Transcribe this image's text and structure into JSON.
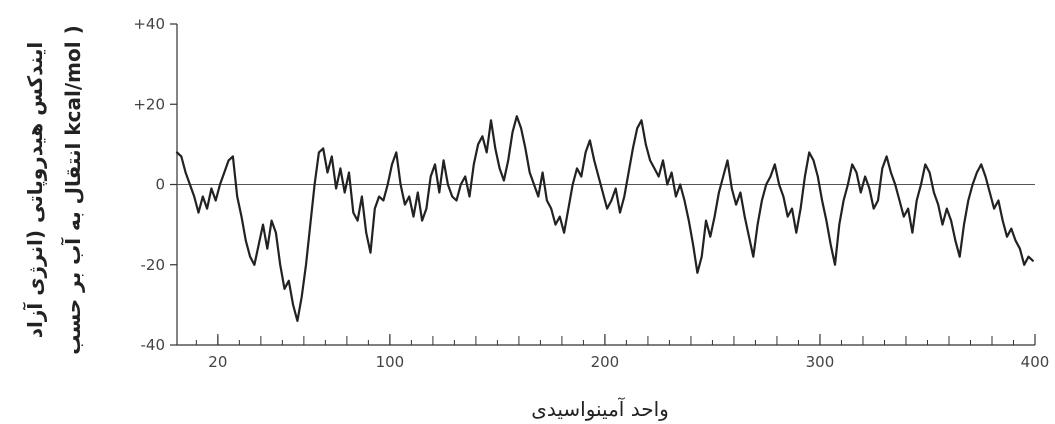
{
  "chart_data": {
    "type": "line",
    "title": "",
    "ylabel_line1": "ایندکس هیدروپاتی (انرژی آزاد",
    "ylabel_line2": "انتقال به آب بر حسب kcal/mol )",
    "xlabel": "واحد آمینواسیدی",
    "xlim": [
      1,
      400
    ],
    "ylim": [
      -40,
      40
    ],
    "x_ticks": [
      {
        "value": 20,
        "label": "20"
      },
      {
        "value": 100,
        "label": "100"
      },
      {
        "value": 200,
        "label": "200"
      },
      {
        "value": 300,
        "label": "300"
      },
      {
        "value": 400,
        "label": "400"
      }
    ],
    "y_ticks": [
      {
        "value": 40,
        "label": "+40"
      },
      {
        "value": 20,
        "label": "+20"
      },
      {
        "value": 0,
        "label": "0"
      },
      {
        "value": -20,
        "label": "-20"
      },
      {
        "value": -40,
        "label": "-40"
      }
    ],
    "zero_line": true,
    "series": [
      {
        "color": "#222222",
        "points": [
          [
            1,
            8
          ],
          [
            3,
            7
          ],
          [
            5,
            3
          ],
          [
            7,
            0
          ],
          [
            9,
            -3
          ],
          [
            11,
            -7
          ],
          [
            13,
            -3
          ],
          [
            15,
            -6
          ],
          [
            17,
            -1
          ],
          [
            19,
            -4
          ],
          [
            21,
            0
          ],
          [
            23,
            3
          ],
          [
            25,
            6
          ],
          [
            27,
            7
          ],
          [
            29,
            -3
          ],
          [
            31,
            -8
          ],
          [
            33,
            -14
          ],
          [
            35,
            -18
          ],
          [
            37,
            -20
          ],
          [
            39,
            -15
          ],
          [
            41,
            -10
          ],
          [
            43,
            -16
          ],
          [
            45,
            -9
          ],
          [
            47,
            -12
          ],
          [
            49,
            -20
          ],
          [
            51,
            -26
          ],
          [
            53,
            -24
          ],
          [
            55,
            -30
          ],
          [
            57,
            -34
          ],
          [
            59,
            -28
          ],
          [
            61,
            -20
          ],
          [
            63,
            -10
          ],
          [
            65,
            0
          ],
          [
            67,
            8
          ],
          [
            69,
            9
          ],
          [
            71,
            3
          ],
          [
            73,
            7
          ],
          [
            75,
            -1
          ],
          [
            77,
            4
          ],
          [
            79,
            -2
          ],
          [
            81,
            3
          ],
          [
            83,
            -7
          ],
          [
            85,
            -9
          ],
          [
            87,
            -3
          ],
          [
            89,
            -12
          ],
          [
            91,
            -17
          ],
          [
            93,
            -6
          ],
          [
            95,
            -3
          ],
          [
            97,
            -4
          ],
          [
            99,
            0
          ],
          [
            101,
            5
          ],
          [
            103,
            8
          ],
          [
            105,
            0
          ],
          [
            107,
            -5
          ],
          [
            109,
            -3
          ],
          [
            111,
            -8
          ],
          [
            113,
            -2
          ],
          [
            115,
            -9
          ],
          [
            117,
            -6
          ],
          [
            119,
            2
          ],
          [
            121,
            5
          ],
          [
            123,
            -2
          ],
          [
            125,
            6
          ],
          [
            127,
            0
          ],
          [
            129,
            -3
          ],
          [
            131,
            -4
          ],
          [
            133,
            0
          ],
          [
            135,
            2
          ],
          [
            137,
            -3
          ],
          [
            139,
            5
          ],
          [
            141,
            10
          ],
          [
            143,
            12
          ],
          [
            145,
            8
          ],
          [
            147,
            16
          ],
          [
            149,
            9
          ],
          [
            151,
            4
          ],
          [
            153,
            1
          ],
          [
            155,
            6
          ],
          [
            157,
            13
          ],
          [
            159,
            17
          ],
          [
            161,
            14
          ],
          [
            163,
            9
          ],
          [
            165,
            3
          ],
          [
            167,
            0
          ],
          [
            169,
            -3
          ],
          [
            171,
            3
          ],
          [
            173,
            -4
          ],
          [
            175,
            -6
          ],
          [
            177,
            -10
          ],
          [
            179,
            -8
          ],
          [
            181,
            -12
          ],
          [
            183,
            -6
          ],
          [
            185,
            0
          ],
          [
            187,
            4
          ],
          [
            189,
            2
          ],
          [
            191,
            8
          ],
          [
            193,
            11
          ],
          [
            195,
            6
          ],
          [
            197,
            2
          ],
          [
            199,
            -2
          ],
          [
            201,
            -6
          ],
          [
            203,
            -4
          ],
          [
            205,
            -1
          ],
          [
            207,
            -7
          ],
          [
            209,
            -3
          ],
          [
            211,
            3
          ],
          [
            213,
            9
          ],
          [
            215,
            14
          ],
          [
            217,
            16
          ],
          [
            219,
            10
          ],
          [
            221,
            6
          ],
          [
            223,
            4
          ],
          [
            225,
            2
          ],
          [
            227,
            6
          ],
          [
            229,
            0
          ],
          [
            231,
            3
          ],
          [
            233,
            -3
          ],
          [
            235,
            0
          ],
          [
            237,
            -4
          ],
          [
            239,
            -9
          ],
          [
            241,
            -15
          ],
          [
            243,
            -22
          ],
          [
            245,
            -18
          ],
          [
            247,
            -9
          ],
          [
            249,
            -13
          ],
          [
            251,
            -8
          ],
          [
            253,
            -2
          ],
          [
            255,
            2
          ],
          [
            257,
            6
          ],
          [
            259,
            -1
          ],
          [
            261,
            -5
          ],
          [
            263,
            -2
          ],
          [
            265,
            -8
          ],
          [
            267,
            -13
          ],
          [
            269,
            -18
          ],
          [
            271,
            -10
          ],
          [
            273,
            -4
          ],
          [
            275,
            0
          ],
          [
            277,
            2
          ],
          [
            279,
            5
          ],
          [
            281,
            0
          ],
          [
            283,
            -3
          ],
          [
            285,
            -8
          ],
          [
            287,
            -6
          ],
          [
            289,
            -12
          ],
          [
            291,
            -6
          ],
          [
            293,
            2
          ],
          [
            295,
            8
          ],
          [
            297,
            6
          ],
          [
            299,
            2
          ],
          [
            301,
            -4
          ],
          [
            303,
            -9
          ],
          [
            305,
            -15
          ],
          [
            307,
            -20
          ],
          [
            309,
            -10
          ],
          [
            311,
            -4
          ],
          [
            313,
            0
          ],
          [
            315,
            5
          ],
          [
            317,
            3
          ],
          [
            319,
            -2
          ],
          [
            321,
            2
          ],
          [
            323,
            -1
          ],
          [
            325,
            -6
          ],
          [
            327,
            -4
          ],
          [
            329,
            4
          ],
          [
            331,
            7
          ],
          [
            333,
            3
          ],
          [
            335,
            0
          ],
          [
            337,
            -4
          ],
          [
            339,
            -8
          ],
          [
            341,
            -6
          ],
          [
            343,
            -12
          ],
          [
            345,
            -4
          ],
          [
            347,
            0
          ],
          [
            349,
            5
          ],
          [
            351,
            3
          ],
          [
            353,
            -2
          ],
          [
            355,
            -5
          ],
          [
            357,
            -10
          ],
          [
            359,
            -6
          ],
          [
            361,
            -9
          ],
          [
            363,
            -14
          ],
          [
            365,
            -18
          ],
          [
            367,
            -10
          ],
          [
            369,
            -4
          ],
          [
            371,
            0
          ],
          [
            373,
            3
          ],
          [
            375,
            5
          ],
          [
            377,
            2
          ],
          [
            379,
            -2
          ],
          [
            381,
            -6
          ],
          [
            383,
            -4
          ],
          [
            385,
            -9
          ],
          [
            387,
            -13
          ],
          [
            389,
            -11
          ],
          [
            391,
            -14
          ],
          [
            393,
            -16
          ],
          [
            395,
            -20
          ],
          [
            397,
            -18
          ],
          [
            399,
            -19
          ]
        ]
      }
    ]
  }
}
